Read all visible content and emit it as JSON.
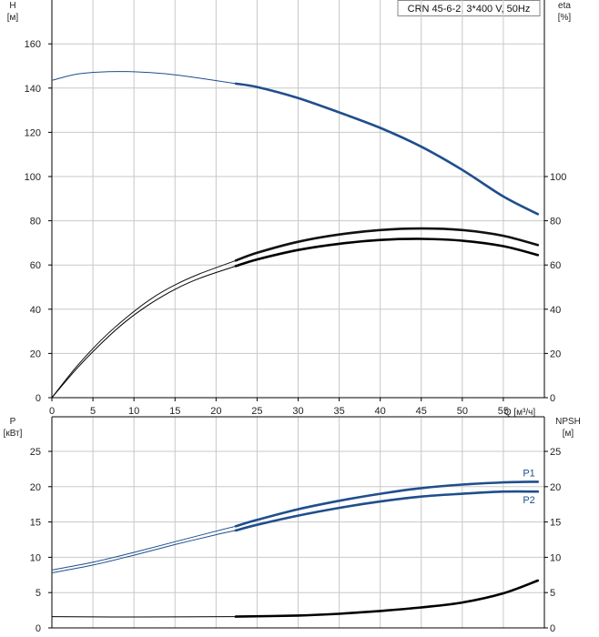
{
  "chart_data": [
    {
      "type": "line",
      "info_box": "CRN 45-6-2, 3*400 V, 50Hz",
      "left_axis": {
        "label": "H",
        "unit": "[м]",
        "ticks": [
          "0",
          "20",
          "40",
          "60",
          "80",
          "100",
          "120",
          "140",
          "160"
        ],
        "ylim": [
          0,
          170
        ]
      },
      "right_axis": {
        "label": "eta",
        "unit": "[%]",
        "ticks": [
          "0",
          "20",
          "40",
          "60",
          "80",
          "100"
        ]
      },
      "x_axis": {
        "label": "Q [м³/ч]",
        "ticks": [
          "0",
          "5",
          "10",
          "15",
          "20",
          "25",
          "30",
          "35",
          "40",
          "45",
          "50",
          "55"
        ],
        "xlim": [
          0,
          60
        ]
      },
      "grid": true,
      "series": [
        {
          "key": "H",
          "axis": "left",
          "color": "#1f4e8c",
          "thin_x": [
            0,
            3,
            6,
            9,
            12,
            15,
            18,
            22.4
          ],
          "thin_y": [
            143.5,
            146.3,
            147.3,
            147.5,
            147,
            146,
            144.5,
            142
          ],
          "bold_x": [
            22.4,
            25,
            30,
            35,
            40,
            45,
            50,
            55,
            59.2
          ],
          "bold_y": [
            142,
            140.5,
            135.5,
            129,
            122,
            113.5,
            103,
            91,
            83
          ]
        },
        {
          "key": "eta_upper",
          "axis": "right",
          "color": "#111111",
          "thin_x": [
            0,
            3,
            6,
            9,
            12,
            15,
            18,
            22.4
          ],
          "thin_y": [
            0,
            14,
            26,
            36,
            44.5,
            51,
            56,
            62
          ],
          "bold_x": [
            22.4,
            25,
            30,
            35,
            40,
            45,
            50,
            55,
            59.2
          ],
          "bold_y": [
            62,
            65.5,
            70.5,
            73.8,
            75.8,
            76.5,
            75.8,
            73.2,
            69
          ]
        },
        {
          "key": "eta_lower",
          "axis": "right",
          "color": "#000000",
          "thin_x": [
            0,
            3,
            6,
            9,
            12,
            15,
            18,
            22.4
          ],
          "thin_y": [
            0,
            13,
            24.5,
            34.5,
            42.5,
            49,
            54,
            59.5
          ],
          "bold_x": [
            22.4,
            25,
            30,
            35,
            40,
            45,
            50,
            55,
            59.2
          ],
          "bold_y": [
            59.5,
            62.5,
            66.8,
            69.6,
            71.3,
            71.8,
            71,
            68.5,
            64.5
          ]
        }
      ]
    },
    {
      "type": "line",
      "left_axis": {
        "label": "P",
        "unit": "[кВт]",
        "ticks": [
          "0",
          "5",
          "10",
          "15",
          "20",
          "25"
        ],
        "ylim": [
          0,
          27.5
        ]
      },
      "right_axis": {
        "label": "NPSH",
        "unit": "[м]",
        "ticks": [
          "0",
          "5",
          "10",
          "15",
          "20",
          "25"
        ]
      },
      "grid": true,
      "series": [
        {
          "key": "P1",
          "name": "P1",
          "axis": "left",
          "color": "#1f4e8c",
          "thin_x": [
            0,
            5,
            10,
            15,
            20,
            22.4
          ],
          "thin_y": [
            8.2,
            9.3,
            10.7,
            12.2,
            13.7,
            14.4
          ],
          "bold_x": [
            22.4,
            25,
            30,
            35,
            40,
            45,
            50,
            55,
            59.2
          ],
          "bold_y": [
            14.4,
            15.3,
            16.8,
            18.0,
            19.0,
            19.8,
            20.3,
            20.6,
            20.7
          ]
        },
        {
          "key": "P2",
          "name": "P2",
          "axis": "left",
          "color": "#1f4e8c",
          "thin_x": [
            0,
            5,
            10,
            15,
            20,
            22.4
          ],
          "thin_y": [
            7.8,
            8.9,
            10.3,
            11.8,
            13.2,
            13.8
          ],
          "bold_x": [
            22.4,
            25,
            30,
            35,
            40,
            45,
            50,
            55,
            59.2
          ],
          "bold_y": [
            13.8,
            14.6,
            15.9,
            17.0,
            17.9,
            18.6,
            19.0,
            19.3,
            19.3
          ]
        },
        {
          "key": "NPSH",
          "axis": "right",
          "color": "#000000",
          "thin_x": [
            0,
            10,
            22.4
          ],
          "thin_y": [
            1.6,
            1.55,
            1.6
          ],
          "bold_x": [
            22.4,
            30,
            35,
            40,
            45,
            50,
            55,
            59.2
          ],
          "bold_y": [
            1.6,
            1.75,
            2.0,
            2.4,
            2.9,
            3.6,
            4.9,
            6.7
          ]
        }
      ]
    }
  ]
}
